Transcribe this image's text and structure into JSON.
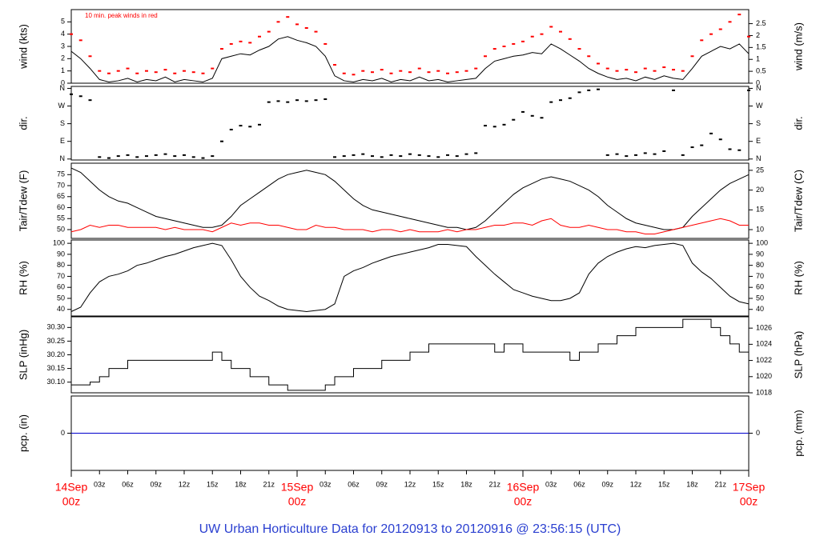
{
  "chart_data": {
    "title": "UW Urban Horticulture Data for 20120913  to  20120916 @ 23:56:15  (UTC)",
    "xlim": [
      0,
      72
    ],
    "x": [
      0,
      1,
      2,
      3,
      4,
      5,
      6,
      7,
      8,
      9,
      10,
      11,
      12,
      13,
      14,
      15,
      16,
      17,
      18,
      19,
      20,
      21,
      22,
      23,
      24,
      25,
      26,
      27,
      28,
      29,
      30,
      31,
      32,
      33,
      34,
      35,
      36,
      37,
      38,
      39,
      40,
      41,
      42,
      43,
      44,
      45,
      46,
      47,
      48,
      49,
      50,
      51,
      52,
      53,
      54,
      55,
      56,
      57,
      58,
      59,
      60,
      61,
      62,
      63,
      64,
      65,
      66,
      67,
      68,
      69,
      70,
      71,
      72
    ],
    "xticks": [
      {
        "value": 3,
        "label": "03z"
      },
      {
        "value": 6,
        "label": "06z"
      },
      {
        "value": 9,
        "label": "09z"
      },
      {
        "value": 12,
        "label": "12z"
      },
      {
        "value": 15,
        "label": "15z"
      },
      {
        "value": 18,
        "label": "18z"
      },
      {
        "value": 21,
        "label": "21z"
      },
      {
        "value": 27,
        "label": "03z"
      },
      {
        "value": 30,
        "label": "06z"
      },
      {
        "value": 33,
        "label": "09z"
      },
      {
        "value": 36,
        "label": "12z"
      },
      {
        "value": 39,
        "label": "15z"
      },
      {
        "value": 42,
        "label": "18z"
      },
      {
        "value": 45,
        "label": "21z"
      },
      {
        "value": 51,
        "label": "03z"
      },
      {
        "value": 54,
        "label": "06z"
      },
      {
        "value": 57,
        "label": "09z"
      },
      {
        "value": 60,
        "label": "12z"
      },
      {
        "value": 63,
        "label": "15z"
      },
      {
        "value": 66,
        "label": "18z"
      },
      {
        "value": 69,
        "label": "21z"
      }
    ],
    "day_ticks": [
      {
        "value": 0,
        "label": [
          "14Sep",
          "00z"
        ]
      },
      {
        "value": 24,
        "label": [
          "15Sep",
          "00z"
        ]
      },
      {
        "value": 48,
        "label": [
          "16Sep",
          "00z"
        ]
      },
      {
        "value": 72,
        "label": [
          "17Sep",
          "00z"
        ]
      }
    ],
    "panels": [
      {
        "type": "line",
        "ylabel": "wind (kts)",
        "y2label": "wind (m/s)",
        "annotation": "10 min. peak winds in red",
        "ylim": [
          0,
          6
        ],
        "yticks": [
          0,
          1,
          2,
          3,
          4,
          5
        ],
        "y2lim": [
          0,
          3.09
        ],
        "y2ticks": [
          0,
          0.5,
          1,
          1.5,
          2,
          2.5
        ],
        "series": [
          {
            "color": "#000000",
            "values": [
              2.6,
              2.0,
              1.2,
              0.3,
              0.1,
              0.2,
              0.4,
              0.1,
              0.3,
              0.2,
              0.5,
              0.1,
              0.3,
              0.2,
              0.1,
              0.4,
              2.0,
              2.2,
              2.4,
              2.3,
              2.7,
              3.0,
              3.6,
              3.8,
              3.5,
              3.3,
              3.0,
              2.2,
              0.6,
              0.2,
              0.1,
              0.3,
              0.2,
              0.4,
              0.1,
              0.3,
              0.2,
              0.5,
              0.2,
              0.3,
              0.1,
              0.2,
              0.3,
              0.4,
              1.2,
              1.8,
              2.0,
              2.2,
              2.3,
              2.5,
              2.4,
              3.2,
              2.8,
              2.3,
              1.8,
              1.2,
              0.8,
              0.5,
              0.3,
              0.4,
              0.2,
              0.5,
              0.3,
              0.6,
              0.4,
              0.3,
              1.2,
              2.2,
              2.6,
              3.0,
              2.8,
              3.2,
              2.4
            ]
          },
          {
            "type": "scatter",
            "color": "#ff0000",
            "values": [
              4.0,
              3.5,
              2.2,
              1.0,
              0.8,
              1.0,
              1.2,
              0.8,
              1.0,
              0.9,
              1.1,
              0.8,
              1.0,
              0.9,
              0.8,
              1.2,
              2.8,
              3.2,
              3.4,
              3.3,
              3.8,
              4.2,
              5.0,
              5.4,
              4.8,
              4.5,
              4.2,
              3.2,
              1.5,
              0.8,
              0.7,
              1.0,
              0.9,
              1.1,
              0.8,
              1.0,
              0.9,
              1.2,
              0.9,
              1.0,
              0.8,
              0.9,
              1.0,
              1.2,
              2.2,
              2.8,
              3.0,
              3.2,
              3.4,
              3.8,
              4.0,
              4.6,
              4.2,
              3.6,
              2.8,
              2.2,
              1.6,
              1.2,
              1.0,
              1.1,
              0.9,
              1.2,
              1.0,
              1.3,
              1.1,
              1.0,
              2.2,
              3.5,
              4.0,
              4.4,
              5.0,
              5.6,
              3.8
            ]
          }
        ]
      },
      {
        "type": "scatter",
        "ylabel": "dir.",
        "y2label": "dir.",
        "ylim": [
          -5,
          370
        ],
        "yticks": [
          {
            "value": 0,
            "label": "N"
          },
          {
            "value": 90,
            "label": "E"
          },
          {
            "value": 180,
            "label": "S"
          },
          {
            "value": 270,
            "label": "W"
          },
          {
            "value": 360,
            "label": "N"
          }
        ],
        "y2lim": [
          -5,
          370
        ],
        "y2ticks": [
          {
            "value": 0,
            "label": "N"
          },
          {
            "value": 90,
            "label": "E"
          },
          {
            "value": 180,
            "label": "S"
          },
          {
            "value": 270,
            "label": "W"
          },
          {
            "value": 360,
            "label": "N"
          }
        ],
        "series": [
          {
            "color": "#000000",
            "values": [
              330,
              320,
              300,
              10,
              5,
              15,
              20,
              10,
              15,
              20,
              25,
              15,
              20,
              10,
              5,
              15,
              90,
              150,
              170,
              165,
              175,
              290,
              295,
              290,
              300,
              295,
              300,
              305,
              10,
              15,
              20,
              25,
              15,
              10,
              20,
              15,
              25,
              20,
              15,
              10,
              20,
              15,
              25,
              30,
              170,
              165,
              175,
              200,
              240,
              220,
              210,
              290,
              300,
              310,
              340,
              350,
              355,
              20,
              25,
              15,
              20,
              30,
              25,
              40,
              350,
              20,
              60,
              70,
              130,
              100,
              50,
              45,
              350
            ]
          }
        ]
      },
      {
        "type": "line",
        "ylabel": "Tair/Tdew (F)",
        "y2label": "Tair/Tdew (C)",
        "ylim": [
          46,
          80.2
        ],
        "yticks": [
          50,
          55,
          60,
          65,
          70,
          75
        ],
        "y2lim": [
          7.78,
          26.8
        ],
        "y2ticks": [
          10,
          15,
          20,
          25
        ],
        "series": [
          {
            "color": "#000000",
            "values": [
              78,
              76,
              72,
              68,
              65,
              63,
              62,
              60,
              58,
              56,
              55,
              54,
              53,
              52,
              51,
              51,
              52,
              56,
              61,
              64,
              67,
              70,
              73,
              75,
              76,
              77,
              76,
              75,
              72,
              68,
              64,
              61,
              59,
              58,
              57,
              56,
              55,
              54,
              53,
              52,
              51,
              51,
              50,
              51,
              54,
              58,
              62,
              66,
              69,
              71,
              73,
              74,
              73,
              72,
              70,
              68,
              65,
              61,
              58,
              55,
              53,
              52,
              51,
              50,
              50,
              51,
              56,
              60,
              64,
              68,
              71,
              73,
              75
            ]
          },
          {
            "color": "#ff0000",
            "values": [
              49,
              50,
              52,
              51,
              52,
              52,
              51,
              51,
              51,
              51,
              50,
              51,
              50,
              50,
              50,
              49,
              51,
              53,
              52,
              53,
              53,
              52,
              52,
              51,
              50,
              50,
              52,
              51,
              51,
              50,
              50,
              50,
              49,
              50,
              50,
              49,
              50,
              49,
              49,
              49,
              50,
              49,
              50,
              50,
              51,
              52,
              52,
              53,
              53,
              52,
              54,
              55,
              52,
              51,
              51,
              52,
              51,
              50,
              50,
              49,
              49,
              48,
              48,
              49,
              50,
              51,
              52,
              53,
              54,
              55,
              54,
              52,
              52
            ]
          }
        ]
      },
      {
        "type": "line",
        "ylabel": "RH (%)",
        "y2label": "RH (%)",
        "ylim": [
          34,
          103
        ],
        "yticks": [
          40,
          50,
          60,
          70,
          80,
          90,
          100
        ],
        "y2lim": [
          34,
          103
        ],
        "y2ticks": [
          40,
          50,
          60,
          70,
          80,
          90,
          100
        ],
        "series": [
          {
            "color": "#000000",
            "values": [
              38,
              42,
              55,
              65,
              70,
              72,
              75,
              80,
              82,
              85,
              88,
              90,
              93,
              96,
              98,
              100,
              98,
              85,
              70,
              60,
              52,
              48,
              43,
              40,
              39,
              38,
              39,
              40,
              45,
              70,
              75,
              78,
              82,
              85,
              88,
              90,
              92,
              94,
              96,
              99,
              99,
              98,
              97,
              88,
              80,
              72,
              65,
              58,
              55,
              52,
              50,
              48,
              48,
              50,
              55,
              72,
              82,
              88,
              92,
              95,
              97,
              96,
              98,
              99,
              100,
              98,
              82,
              74,
              68,
              60,
              52,
              47,
              45
            ]
          }
        ]
      },
      {
        "type": "line",
        "ylabel": "SLP (inHg)",
        "y2label": "SLP (hPa)",
        "ylim": [
          30.061,
          30.339
        ],
        "yticks": [
          {
            "value": 30.1,
            "label": "30.10"
          },
          {
            "value": 30.15,
            "label": "30.15"
          },
          {
            "value": 30.2,
            "label": "30.20"
          },
          {
            "value": 30.25,
            "label": "30.25"
          },
          {
            "value": 30.3,
            "label": "30.30"
          }
        ],
        "y2lim": [
          1018.0,
          1027.4
        ],
        "y2ticks": [
          1018,
          1020,
          1022,
          1024,
          1026
        ],
        "series": [
          {
            "color": "#000000",
            "step": true,
            "values": [
              30.09,
              30.09,
              30.1,
              30.12,
              30.15,
              30.15,
              30.18,
              30.18,
              30.18,
              30.18,
              30.18,
              30.18,
              30.18,
              30.18,
              30.18,
              30.21,
              30.18,
              30.15,
              30.15,
              30.12,
              30.12,
              30.09,
              30.09,
              30.07,
              30.07,
              30.07,
              30.07,
              30.09,
              30.12,
              30.12,
              30.15,
              30.15,
              30.15,
              30.18,
              30.18,
              30.18,
              30.21,
              30.21,
              30.24,
              30.24,
              30.24,
              30.24,
              30.24,
              30.24,
              30.24,
              30.21,
              30.24,
              30.24,
              30.21,
              30.21,
              30.21,
              30.21,
              30.21,
              30.18,
              30.21,
              30.21,
              30.24,
              30.24,
              30.27,
              30.27,
              30.3,
              30.3,
              30.3,
              30.3,
              30.3,
              30.33,
              30.33,
              30.33,
              30.3,
              30.27,
              30.24,
              30.21,
              30.18
            ]
          }
        ]
      },
      {
        "type": "line",
        "ylabel": "pcp. (in)",
        "y2label": "pcp. (mm)",
        "ylim": [
          -1,
          1
        ],
        "yticks": [
          0
        ],
        "y2lim": [
          -1,
          1
        ],
        "y2ticks": [
          0
        ],
        "series": [
          {
            "color": "#0000cc",
            "values": [
              0,
              0,
              0,
              0,
              0,
              0,
              0,
              0,
              0,
              0,
              0,
              0,
              0,
              0,
              0,
              0,
              0,
              0,
              0,
              0,
              0,
              0,
              0,
              0,
              0,
              0,
              0,
              0,
              0,
              0,
              0,
              0,
              0,
              0,
              0,
              0,
              0,
              0,
              0,
              0,
              0,
              0,
              0,
              0,
              0,
              0,
              0,
              0,
              0,
              0,
              0,
              0,
              0,
              0,
              0,
              0,
              0,
              0,
              0,
              0,
              0,
              0,
              0,
              0,
              0,
              0,
              0,
              0,
              0,
              0,
              0,
              0,
              0
            ]
          }
        ]
      }
    ]
  }
}
